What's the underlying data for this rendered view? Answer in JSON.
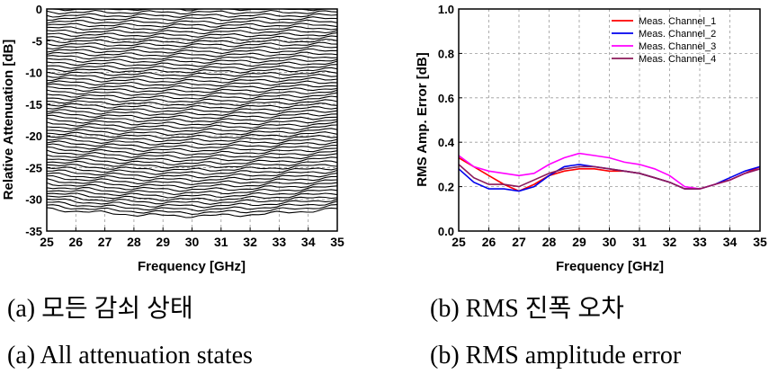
{
  "chart_data": [
    {
      "type": "line",
      "panel": "a",
      "xlabel": "Frequency [GHz]",
      "ylabel": "Relative Attenuation [dB]",
      "xlim": [
        25,
        35
      ],
      "ylim": [
        -35,
        0
      ],
      "x_ticks": [
        "25",
        "26",
        "27",
        "28",
        "29",
        "30",
        "31",
        "32",
        "33",
        "34",
        "35"
      ],
      "y_ticks": [
        "0",
        "-5",
        "-10",
        "-15",
        "-20",
        "-25",
        "-30",
        "-35"
      ],
      "grid": true,
      "state_count": 64,
      "state_step_db": -0.5,
      "line_color": "#000000",
      "caption_kr": "(a) 모든 감쇠 상태",
      "caption_en": "(a) All attenuation states"
    },
    {
      "type": "line",
      "panel": "b",
      "xlabel": "Frequency [GHz]",
      "ylabel": "RMS Amp. Error [dB]",
      "xlim": [
        25,
        35
      ],
      "ylim": [
        0.0,
        1.0
      ],
      "x_ticks": [
        "25",
        "26",
        "27",
        "28",
        "29",
        "30",
        "31",
        "32",
        "33",
        "34",
        "35"
      ],
      "y_ticks": [
        "0.0",
        "0.2",
        "0.4",
        "0.6",
        "0.8",
        "1.0"
      ],
      "grid": true,
      "legend_position": "top-right",
      "x": [
        25,
        25.5,
        26,
        26.5,
        27,
        27.5,
        28,
        28.5,
        29,
        29.5,
        30,
        30.5,
        31,
        31.5,
        32,
        32.5,
        33,
        33.5,
        34,
        34.5,
        35
      ],
      "series": [
        {
          "name": "Meas. Channel_1",
          "color": "#ff0000",
          "values": [
            0.33,
            0.29,
            0.25,
            0.21,
            0.18,
            0.21,
            0.25,
            0.27,
            0.28,
            0.28,
            0.27,
            0.27,
            0.26,
            0.24,
            0.22,
            0.19,
            0.19,
            0.21,
            0.23,
            0.26,
            0.29
          ]
        },
        {
          "name": "Meas. Channel_2",
          "color": "#0000ee",
          "values": [
            0.28,
            0.22,
            0.19,
            0.19,
            0.18,
            0.2,
            0.25,
            0.29,
            0.3,
            0.29,
            0.28,
            0.27,
            0.26,
            0.24,
            0.22,
            0.19,
            0.19,
            0.21,
            0.24,
            0.27,
            0.29
          ]
        },
        {
          "name": "Meas. Channel_3",
          "color": "#ff00ff",
          "values": [
            0.34,
            0.29,
            0.27,
            0.26,
            0.25,
            0.26,
            0.3,
            0.33,
            0.35,
            0.34,
            0.33,
            0.31,
            0.3,
            0.28,
            0.25,
            0.2,
            0.19,
            0.21,
            0.23,
            0.26,
            0.28
          ]
        },
        {
          "name": "Meas. Channel_4",
          "color": "#8b1a5a",
          "values": [
            0.3,
            0.24,
            0.21,
            0.21,
            0.2,
            0.23,
            0.26,
            0.28,
            0.29,
            0.29,
            0.28,
            0.27,
            0.26,
            0.24,
            0.22,
            0.19,
            0.19,
            0.21,
            0.23,
            0.26,
            0.28
          ]
        }
      ],
      "caption_kr": "(b) RMS 진폭 오차",
      "caption_en": "(b) RMS amplitude error"
    }
  ]
}
